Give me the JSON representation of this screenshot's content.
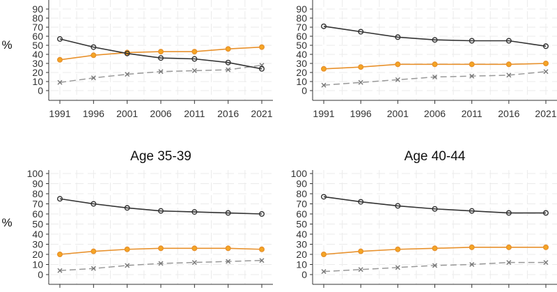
{
  "chart_data": [
    {
      "type": "line",
      "title": "",
      "ylabel": "%",
      "xlabel": "",
      "x": [
        1991,
        1996,
        2001,
        2006,
        2011,
        2016,
        2021
      ],
      "ylim": [
        0,
        100
      ],
      "yticks": [
        0,
        10,
        20,
        30,
        40,
        50,
        60,
        70,
        80,
        90
      ],
      "series": [
        {
          "name": "black",
          "color": "#333333",
          "marker": "circle",
          "dash": false,
          "values": [
            57,
            48,
            41,
            36,
            35,
            31,
            24
          ]
        },
        {
          "name": "orange",
          "color": "#e8912c",
          "marker": "circle",
          "dash": false,
          "values": [
            34,
            39,
            42,
            43,
            43,
            46,
            48
          ]
        },
        {
          "name": "grey",
          "color": "#999999",
          "marker": "x",
          "dash": true,
          "values": [
            9,
            14,
            18,
            21,
            22,
            23,
            28
          ]
        }
      ]
    },
    {
      "type": "line",
      "title": "",
      "ylabel": "",
      "xlabel": "",
      "x": [
        1991,
        1996,
        2001,
        2006,
        2011,
        2016,
        2021
      ],
      "ylim": [
        0,
        100
      ],
      "yticks": [
        0,
        10,
        20,
        30,
        40,
        50,
        60,
        70,
        80,
        90
      ],
      "series": [
        {
          "name": "black",
          "color": "#333333",
          "marker": "circle",
          "dash": false,
          "values": [
            71,
            65,
            59,
            56,
            55,
            55,
            49
          ]
        },
        {
          "name": "orange",
          "color": "#e8912c",
          "marker": "circle",
          "dash": false,
          "values": [
            24,
            26,
            29,
            29,
            29,
            29,
            30
          ]
        },
        {
          "name": "grey",
          "color": "#999999",
          "marker": "x",
          "dash": true,
          "values": [
            6,
            9,
            12,
            15,
            16,
            17,
            21
          ]
        }
      ]
    },
    {
      "type": "line",
      "title": "Age 35-39",
      "ylabel": "%",
      "xlabel": "",
      "x": [
        1991,
        1996,
        2001,
        2006,
        2011,
        2016,
        2021
      ],
      "ylim": [
        0,
        100
      ],
      "yticks": [
        0,
        10,
        20,
        30,
        40,
        50,
        60,
        70,
        80,
        90,
        100
      ],
      "series": [
        {
          "name": "black",
          "color": "#333333",
          "marker": "circle",
          "dash": false,
          "values": [
            75,
            70,
            66,
            63,
            62,
            61,
            60
          ]
        },
        {
          "name": "orange",
          "color": "#e8912c",
          "marker": "circle",
          "dash": false,
          "values": [
            20,
            23,
            25,
            26,
            26,
            26,
            25
          ]
        },
        {
          "name": "grey",
          "color": "#999999",
          "marker": "x",
          "dash": true,
          "values": [
            4,
            6,
            9,
            11,
            12,
            13,
            14
          ]
        }
      ]
    },
    {
      "type": "line",
      "title": "Age 40-44",
      "ylabel": "",
      "xlabel": "",
      "x": [
        1991,
        1996,
        2001,
        2006,
        2011,
        2016,
        2021
      ],
      "ylim": [
        0,
        100
      ],
      "yticks": [
        0,
        10,
        20,
        30,
        40,
        50,
        60,
        70,
        80,
        90,
        100
      ],
      "series": [
        {
          "name": "black",
          "color": "#333333",
          "marker": "circle",
          "dash": false,
          "values": [
            77,
            72,
            68,
            65,
            63,
            61,
            61
          ]
        },
        {
          "name": "orange",
          "color": "#e8912c",
          "marker": "circle",
          "dash": false,
          "values": [
            20,
            23,
            25,
            26,
            27,
            27,
            27
          ]
        },
        {
          "name": "grey",
          "color": "#999999",
          "marker": "x",
          "dash": true,
          "values": [
            3,
            5,
            7,
            9,
            10,
            12,
            12
          ]
        }
      ]
    }
  ]
}
